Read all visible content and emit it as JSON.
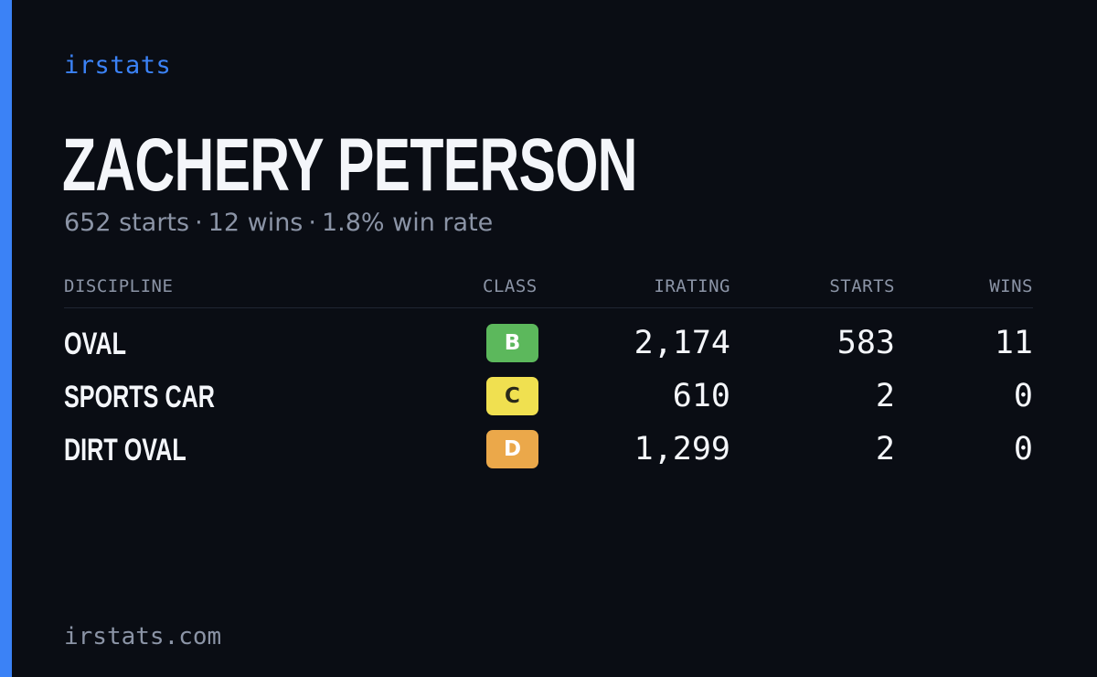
{
  "brand": "irstats",
  "driver": {
    "name": "ZACHERY PETERSON",
    "starts_text": "652 starts",
    "wins_text": "12 wins",
    "winrate_text": "1.8% win rate",
    "separator": "·"
  },
  "table": {
    "headers": {
      "discipline": "DISCIPLINE",
      "class": "CLASS",
      "irating": "IRATING",
      "starts": "STARTS",
      "wins": "WINS"
    },
    "rows": [
      {
        "discipline": "OVAL",
        "class": "B",
        "class_color": "#5cb85c",
        "irating": "2,174",
        "starts": "583",
        "wins": "11"
      },
      {
        "discipline": "SPORTS CAR",
        "class": "C",
        "class_color": "#f0e050",
        "irating": "610",
        "starts": "2",
        "wins": "0"
      },
      {
        "discipline": "DIRT OVAL",
        "class": "D",
        "class_color": "#eba84a",
        "irating": "1,299",
        "starts": "2",
        "wins": "0"
      }
    ]
  },
  "footer": "irstats.com",
  "colors": {
    "accent": "#3b82f6",
    "background": "#0a0d14"
  }
}
